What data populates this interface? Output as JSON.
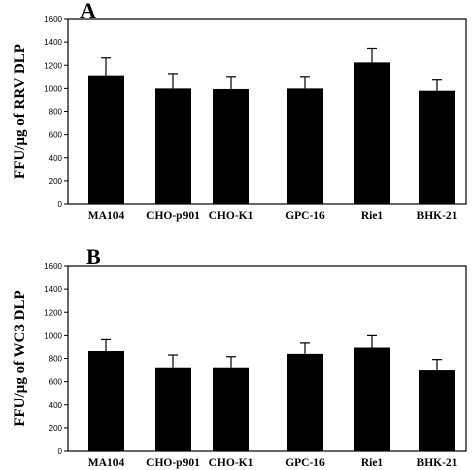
{
  "chart_data": [
    {
      "type": "bar",
      "panel": "A",
      "ylabel": "FFU/µg of RRV DLP",
      "categories": [
        "MA104",
        "CHO-p901",
        "CHO-K1",
        "GPC-16",
        "Rie1",
        "BHK-21"
      ],
      "values": [
        1110,
        1000,
        995,
        1000,
        1225,
        980
      ],
      "errors": [
        155,
        125,
        105,
        100,
        120,
        95
      ],
      "ylim": [
        0,
        1600
      ],
      "yticks": [
        0,
        200,
        400,
        600,
        800,
        1000,
        1200,
        1400,
        1600
      ],
      "grid": false,
      "bar_color": "#000000"
    },
    {
      "type": "bar",
      "panel": "B",
      "ylabel": "FFU/µg of WC3 DLP",
      "categories": [
        "MA104",
        "CHO-p901",
        "CHO-K1",
        "GPC-16",
        "Rie1",
        "BHK-21"
      ],
      "values": [
        865,
        720,
        720,
        840,
        895,
        700
      ],
      "errors": [
        100,
        110,
        95,
        95,
        105,
        90
      ],
      "ylim": [
        0,
        1600
      ],
      "yticks": [
        0,
        200,
        400,
        600,
        800,
        1000,
        1200,
        1400,
        1600
      ],
      "grid": false,
      "bar_color": "#000000"
    }
  ]
}
